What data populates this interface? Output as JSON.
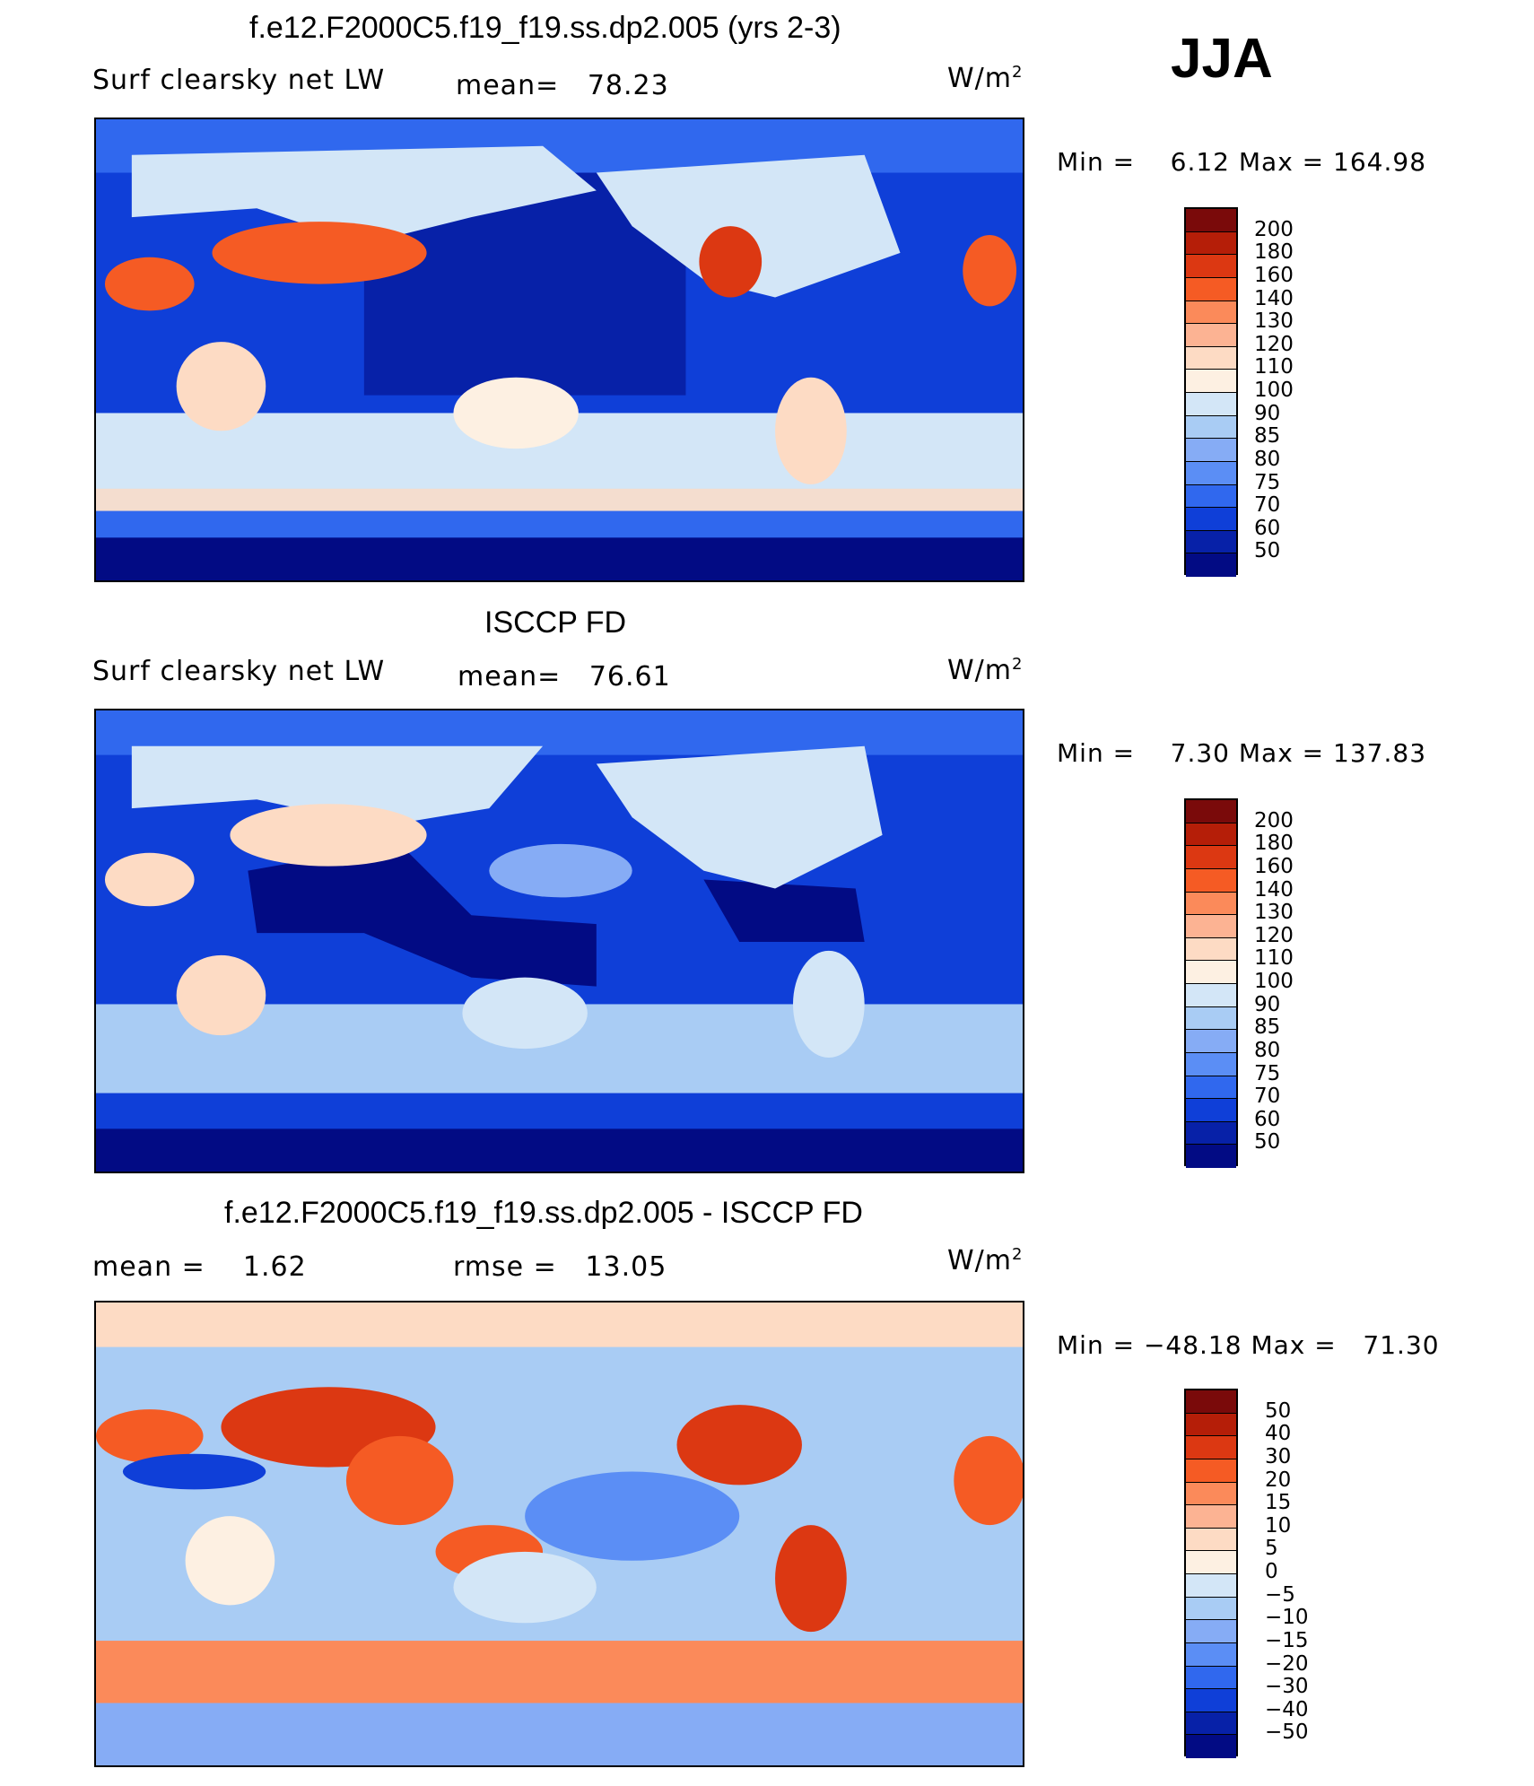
{
  "season": "JJA",
  "panels": [
    {
      "title": "f.e12.F2000C5.f19_f19.ss.dp2.005 (yrs 2-3)",
      "left_label": "Surf clearsky net LW",
      "stat_text": "mean=   78.23",
      "units_base": "W/m",
      "units_exp": "2",
      "minmax": "Min =    6.12 Max = 164.98",
      "colorbar_labels": [
        "200",
        "180",
        "160",
        "140",
        "130",
        "120",
        "110",
        "100",
        "90",
        "85",
        "80",
        "75",
        "70",
        "60",
        "50"
      ],
      "colors": [
        "#7a0a0a",
        "#b51e08",
        "#dc3812",
        "#f55b24",
        "#fb8a5a",
        "#fcb393",
        "#fddbc4",
        "#fdf0e2",
        "#d3e6f7",
        "#a9ccf4",
        "#86acf5",
        "#5b8ef5",
        "#3068ee",
        "#0f3fd8",
        "#0721a8",
        "#020b84"
      ],
      "map_description": "global map"
    },
    {
      "title": "ISCCP FD",
      "left_label": "Surf clearsky net LW",
      "stat_text": "mean=   76.61",
      "units_base": "W/m",
      "units_exp": "2",
      "minmax": "Min =    7.30 Max = 137.83",
      "colorbar_labels": [
        "200",
        "180",
        "160",
        "140",
        "130",
        "120",
        "110",
        "100",
        "90",
        "85",
        "80",
        "75",
        "70",
        "60",
        "50"
      ],
      "colors": [
        "#7a0a0a",
        "#b51e08",
        "#dc3812",
        "#f55b24",
        "#fb8a5a",
        "#fcb393",
        "#fddbc4",
        "#fdf0e2",
        "#d3e6f7",
        "#a9ccf4",
        "#86acf5",
        "#5b8ef5",
        "#3068ee",
        "#0f3fd8",
        "#0721a8",
        "#020b84"
      ]
    },
    {
      "title": "f.e12.F2000C5.f19_f19.ss.dp2.005 - ISCCP FD",
      "left_label": "mean =    1.62",
      "stat_text": "rmse =   13.05",
      "units_base": "W/m",
      "units_exp": "2",
      "minmax": "Min = −48.18 Max =   71.30",
      "colorbar_labels": [
        "50",
        "40",
        "30",
        "20",
        "15",
        "10",
        "5",
        "0",
        "−5",
        "−10",
        "−15",
        "−20",
        "−30",
        "−40",
        "−50"
      ],
      "colors": [
        "#7a0a0a",
        "#b51e08",
        "#dc3812",
        "#f55b24",
        "#fb8a5a",
        "#fcb393",
        "#fddbc4",
        "#fdf0e2",
        "#d3e6f7",
        "#a9ccf4",
        "#86acf5",
        "#5b8ef5",
        "#3068ee",
        "#0f3fd8",
        "#0721a8",
        "#020b84"
      ]
    }
  ],
  "chart_data": [
    {
      "type": "heatmap",
      "title": "f.e12.F2000C5.f19_f19.ss.dp2.005 (yrs 2-3)",
      "variable": "Surf clearsky net LW",
      "units": "W/m2",
      "mean": 78.23,
      "min": 6.12,
      "max": 164.98,
      "levels": [
        50,
        60,
        70,
        75,
        80,
        85,
        90,
        100,
        110,
        120,
        130,
        140,
        160,
        180,
        200
      ]
    },
    {
      "type": "heatmap",
      "title": "ISCCP FD",
      "variable": "Surf clearsky net LW",
      "units": "W/m2",
      "mean": 76.61,
      "min": 7.3,
      "max": 137.83,
      "levels": [
        50,
        60,
        70,
        75,
        80,
        85,
        90,
        100,
        110,
        120,
        130,
        140,
        160,
        180,
        200
      ]
    },
    {
      "type": "heatmap",
      "title": "f.e12.F2000C5.f19_f19.ss.dp2.005 - ISCCP FD",
      "units": "W/m2",
      "mean": 1.62,
      "rmse": 13.05,
      "min": -48.18,
      "max": 71.3,
      "levels": [
        -50,
        -40,
        -30,
        -20,
        -15,
        -10,
        -5,
        0,
        5,
        10,
        15,
        20,
        30,
        40,
        50
      ]
    }
  ]
}
